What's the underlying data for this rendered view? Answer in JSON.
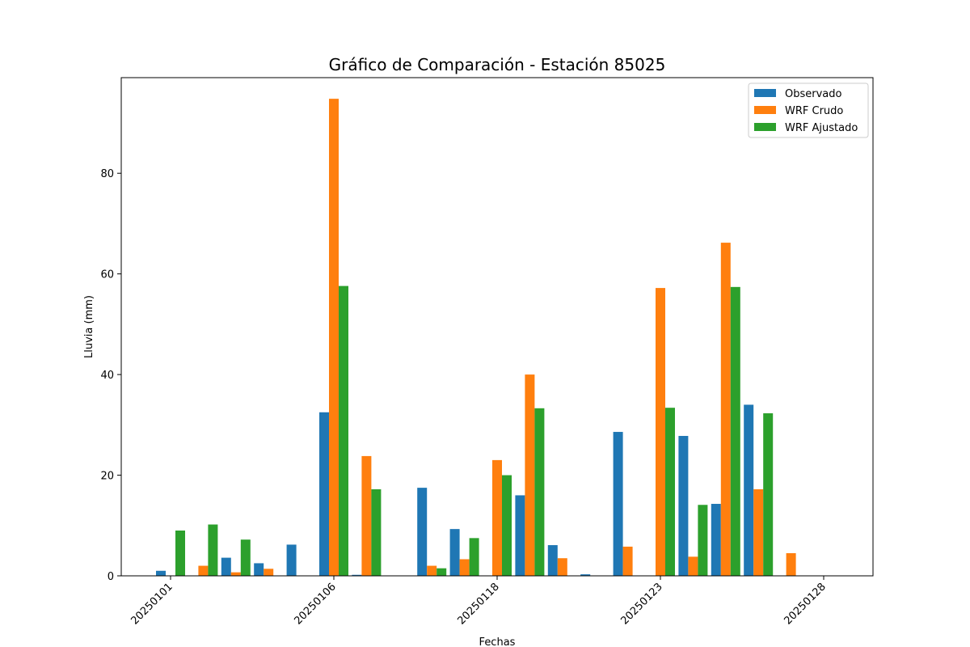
{
  "chart_data": {
    "type": "bar",
    "title": "Gráfico de Comparación - Estación 85025",
    "xlabel": "Fechas",
    "ylabel": "Lluvia (mm)",
    "ylim": [
      0,
      99
    ],
    "yticks": [
      0,
      20,
      40,
      60,
      80
    ],
    "xtick_labels": [
      "20250101",
      "20250106",
      "20250118",
      "20250123",
      "20250128"
    ],
    "legend_position": "top-right",
    "grid": false,
    "series": [
      {
        "name": "Observado",
        "color": "#1f77b4",
        "values": [
          1.0,
          0,
          3.6,
          2.5,
          6.2,
          32.5,
          0.2,
          0,
          17.5,
          9.3,
          0,
          16.0,
          6.1,
          0.3,
          28.6,
          0,
          27.8,
          14.3,
          34.0,
          0,
          0
        ]
      },
      {
        "name": "WRF Crudo",
        "color": "#ff7f0e",
        "values": [
          0,
          2.0,
          0.7,
          1.4,
          0,
          94.8,
          23.8,
          0,
          2.0,
          3.3,
          23.0,
          40.0,
          3.5,
          0,
          5.8,
          57.2,
          3.8,
          66.2,
          17.2,
          4.5,
          0
        ]
      },
      {
        "name": "WRF Ajustado",
        "color": "#2ca02c",
        "values": [
          9.0,
          10.2,
          7.2,
          0,
          0,
          57.6,
          17.2,
          0,
          1.5,
          7.5,
          20.0,
          33.3,
          0,
          0,
          0,
          33.4,
          14.1,
          57.4,
          32.3,
          0,
          0
        ]
      }
    ]
  }
}
